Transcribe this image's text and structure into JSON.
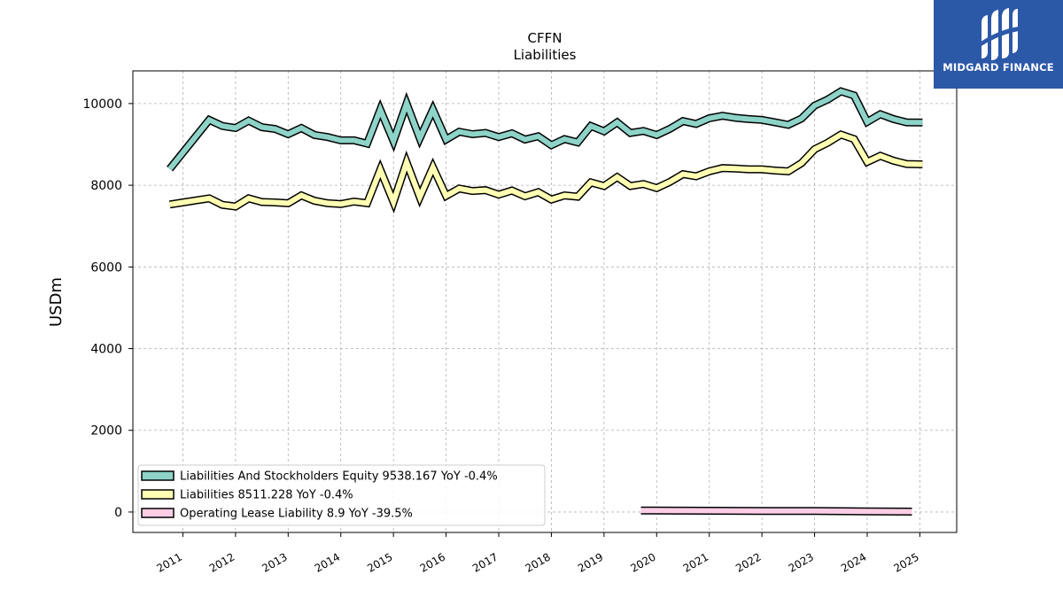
{
  "brand": {
    "name": "MIDGARD FINANCE",
    "color": "#2c58a8"
  },
  "chart_data": {
    "type": "line",
    "title": "CFFN",
    "subtitle": "Liabilities",
    "ylabel": "USDm",
    "xlabel": "",
    "ylim": [
      -500,
      10800
    ],
    "xlim": [
      2010.05,
      2025.7
    ],
    "yticks": [
      0,
      2000,
      4000,
      6000,
      8000,
      10000
    ],
    "xticks": [
      "2011",
      "2012",
      "2013",
      "2014",
      "2015",
      "2016",
      "2017",
      "2018",
      "2019",
      "2020",
      "2021",
      "2022",
      "2023",
      "2024",
      "2025"
    ],
    "grid": true,
    "legend_position": "bottom-left",
    "series": [
      {
        "name": "Liabilities And Stockholders Equity",
        "legend_label": "Liabilities And Stockholders Equity  9538.167 YoY -0.4%",
        "color": "#8dd3c7",
        "x": [
          2010.75,
          2011.0,
          2011.25,
          2011.5,
          2011.75,
          2012.0,
          2012.25,
          2012.5,
          2012.75,
          2013.0,
          2013.25,
          2013.5,
          2013.75,
          2014.0,
          2014.25,
          2014.5,
          2014.75,
          2015.0,
          2015.25,
          2015.5,
          2015.75,
          2016.0,
          2016.25,
          2016.5,
          2016.75,
          2017.0,
          2017.25,
          2017.5,
          2017.75,
          2018.0,
          2018.25,
          2018.5,
          2018.75,
          2019.0,
          2019.25,
          2019.5,
          2019.75,
          2020.0,
          2020.25,
          2020.5,
          2020.75,
          2021.0,
          2021.25,
          2021.5,
          2021.75,
          2022.0,
          2022.25,
          2022.5,
          2022.75,
          2023.0,
          2023.25,
          2023.5,
          2023.75,
          2024.0,
          2024.25,
          2024.5,
          2024.75,
          2025.05
        ],
        "values": [
          8400,
          8800,
          9200,
          9600,
          9450,
          9400,
          9580,
          9420,
          9380,
          9250,
          9400,
          9230,
          9180,
          9100,
          9100,
          9020,
          9850,
          9080,
          10000,
          9150,
          9850,
          9120,
          9310,
          9250,
          9280,
          9180,
          9270,
          9120,
          9200,
          8980,
          9130,
          9050,
          9450,
          9320,
          9540,
          9280,
          9330,
          9230,
          9380,
          9570,
          9500,
          9640,
          9700,
          9650,
          9620,
          9600,
          9540,
          9480,
          9630,
          9950,
          10100,
          10300,
          10200,
          9550,
          9740,
          9620,
          9540,
          9538
        ]
      },
      {
        "name": "Liabilities",
        "legend_label": "Liabilities  8511.228 YoY -0.4%",
        "color": "#ffffb3",
        "x": [
          2010.75,
          2011.0,
          2011.25,
          2011.5,
          2011.75,
          2012.0,
          2012.25,
          2012.5,
          2012.75,
          2013.0,
          2013.25,
          2013.5,
          2013.75,
          2014.0,
          2014.25,
          2014.5,
          2014.75,
          2015.0,
          2015.25,
          2015.5,
          2015.75,
          2016.0,
          2016.25,
          2016.5,
          2016.75,
          2017.0,
          2017.25,
          2017.5,
          2017.75,
          2018.0,
          2018.25,
          2018.5,
          2018.75,
          2019.0,
          2019.25,
          2019.5,
          2019.75,
          2020.0,
          2020.25,
          2020.5,
          2020.75,
          2021.0,
          2021.25,
          2021.5,
          2021.75,
          2022.0,
          2022.25,
          2022.5,
          2022.75,
          2023.0,
          2023.25,
          2023.5,
          2023.75,
          2024.0,
          2024.25,
          2024.5,
          2024.75,
          2025.05
        ],
        "values": [
          7530,
          7580,
          7630,
          7680,
          7520,
          7480,
          7680,
          7590,
          7580,
          7560,
          7750,
          7620,
          7560,
          7540,
          7600,
          7560,
          8380,
          7590,
          8560,
          7710,
          8440,
          7740,
          7920,
          7860,
          7880,
          7770,
          7870,
          7730,
          7830,
          7650,
          7750,
          7720,
          8070,
          7980,
          8200,
          7980,
          8030,
          7930,
          8080,
          8270,
          8220,
          8340,
          8420,
          8410,
          8390,
          8390,
          8360,
          8340,
          8540,
          8880,
          9040,
          9240,
          9130,
          8570,
          8720,
          8600,
          8520,
          8511
        ]
      },
      {
        "name": "Operating Lease Liability",
        "legend_label": "Operating Lease Liability  8.9 YoY -39.5%",
        "color": "#fccde5",
        "x": [
          2019.7,
          2020.0,
          2020.5,
          2021.0,
          2021.5,
          2022.0,
          2022.5,
          2023.0,
          2023.5,
          2024.0,
          2024.5,
          2024.85
        ],
        "values": [
          38,
          36,
          34,
          32,
          30,
          28,
          26,
          24,
          20,
          16,
          12,
          9
        ]
      }
    ]
  }
}
